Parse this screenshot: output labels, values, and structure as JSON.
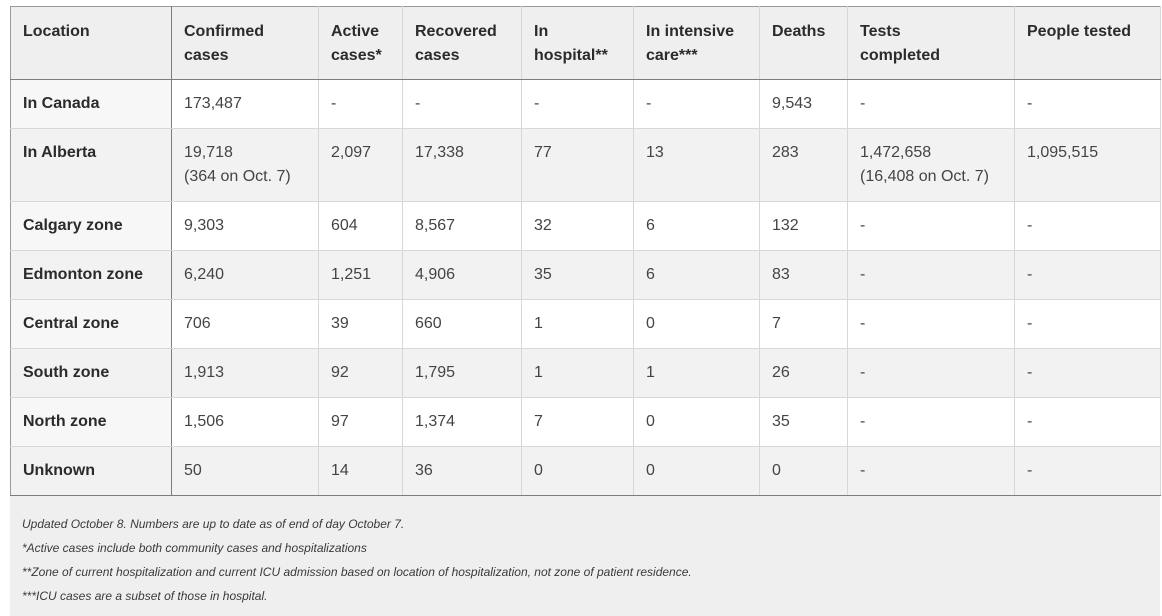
{
  "table": {
    "headers": [
      {
        "line1": "Location",
        "line2": ""
      },
      {
        "line1": "Confirmed",
        "line2": "cases"
      },
      {
        "line1": "Active",
        "line2": "cases*"
      },
      {
        "line1": "Recovered",
        "line2": "cases"
      },
      {
        "line1": "In",
        "line2": "hospital**"
      },
      {
        "line1": "In intensive",
        "line2": "care***"
      },
      {
        "line1": "Deaths",
        "line2": ""
      },
      {
        "line1": "Tests",
        "line2": "completed"
      },
      {
        "line1": "People tested",
        "line2": ""
      }
    ],
    "rows": [
      {
        "location": "In Canada",
        "confirmed": "173,487",
        "confirmed_sub": "",
        "active": "-",
        "recovered": "-",
        "hospital": "-",
        "icu": "-",
        "deaths": "9,543",
        "tests": "-",
        "tests_sub": "",
        "people": "-"
      },
      {
        "location": "In Alberta",
        "confirmed": "19,718",
        "confirmed_sub": "(364 on Oct. 7)",
        "active": "2,097",
        "recovered": "17,338",
        "hospital": "77",
        "icu": "13",
        "deaths": "283",
        "tests": "1,472,658",
        "tests_sub": "(16,408 on Oct. 7)",
        "people": "1,095,515"
      },
      {
        "location": "Calgary zone",
        "confirmed": "9,303",
        "confirmed_sub": "",
        "active": "604",
        "recovered": "8,567",
        "hospital": "32",
        "icu": "6",
        "deaths": "132",
        "tests": "-",
        "tests_sub": "",
        "people": "-"
      },
      {
        "location": "Edmonton zone",
        "confirmed": "6,240",
        "confirmed_sub": "",
        "active": "1,251",
        "recovered": "4,906",
        "hospital": "35",
        "icu": "6",
        "deaths": "83",
        "tests": "-",
        "tests_sub": "",
        "people": "-"
      },
      {
        "location": "Central zone",
        "confirmed": "706",
        "confirmed_sub": "",
        "active": "39",
        "recovered": "660",
        "hospital": "1",
        "icu": "0",
        "deaths": "7",
        "tests": "-",
        "tests_sub": "",
        "people": "-"
      },
      {
        "location": "South zone",
        "confirmed": "1,913",
        "confirmed_sub": "",
        "active": "92",
        "recovered": "1,795",
        "hospital": "1",
        "icu": "1",
        "deaths": "26",
        "tests": "-",
        "tests_sub": "",
        "people": "-"
      },
      {
        "location": "North zone",
        "confirmed": "1,506",
        "confirmed_sub": "",
        "active": "97",
        "recovered": "1,374",
        "hospital": "7",
        "icu": "0",
        "deaths": "35",
        "tests": "-",
        "tests_sub": "",
        "people": "-"
      },
      {
        "location": "Unknown",
        "confirmed": "50",
        "confirmed_sub": "",
        "active": "14",
        "recovered": "36",
        "hospital": "0",
        "icu": "0",
        "deaths": "0",
        "tests": "-",
        "tests_sub": "",
        "people": "-"
      }
    ]
  },
  "notes": [
    "Updated October 8. Numbers are up to date as of end of day October 7.",
    "*Active cases include both community cases and hospitalizations",
    "**Zone of current hospitalization and current ICU admission based on location of hospitalization, not zone of patient residence.",
    "***ICU cases are a subset of those in hospital."
  ],
  "colors": {
    "header_bg": "#efefef",
    "row_alt_bg": "#f2f2f2",
    "notes_bg": "#efefef",
    "text": "#333333"
  }
}
